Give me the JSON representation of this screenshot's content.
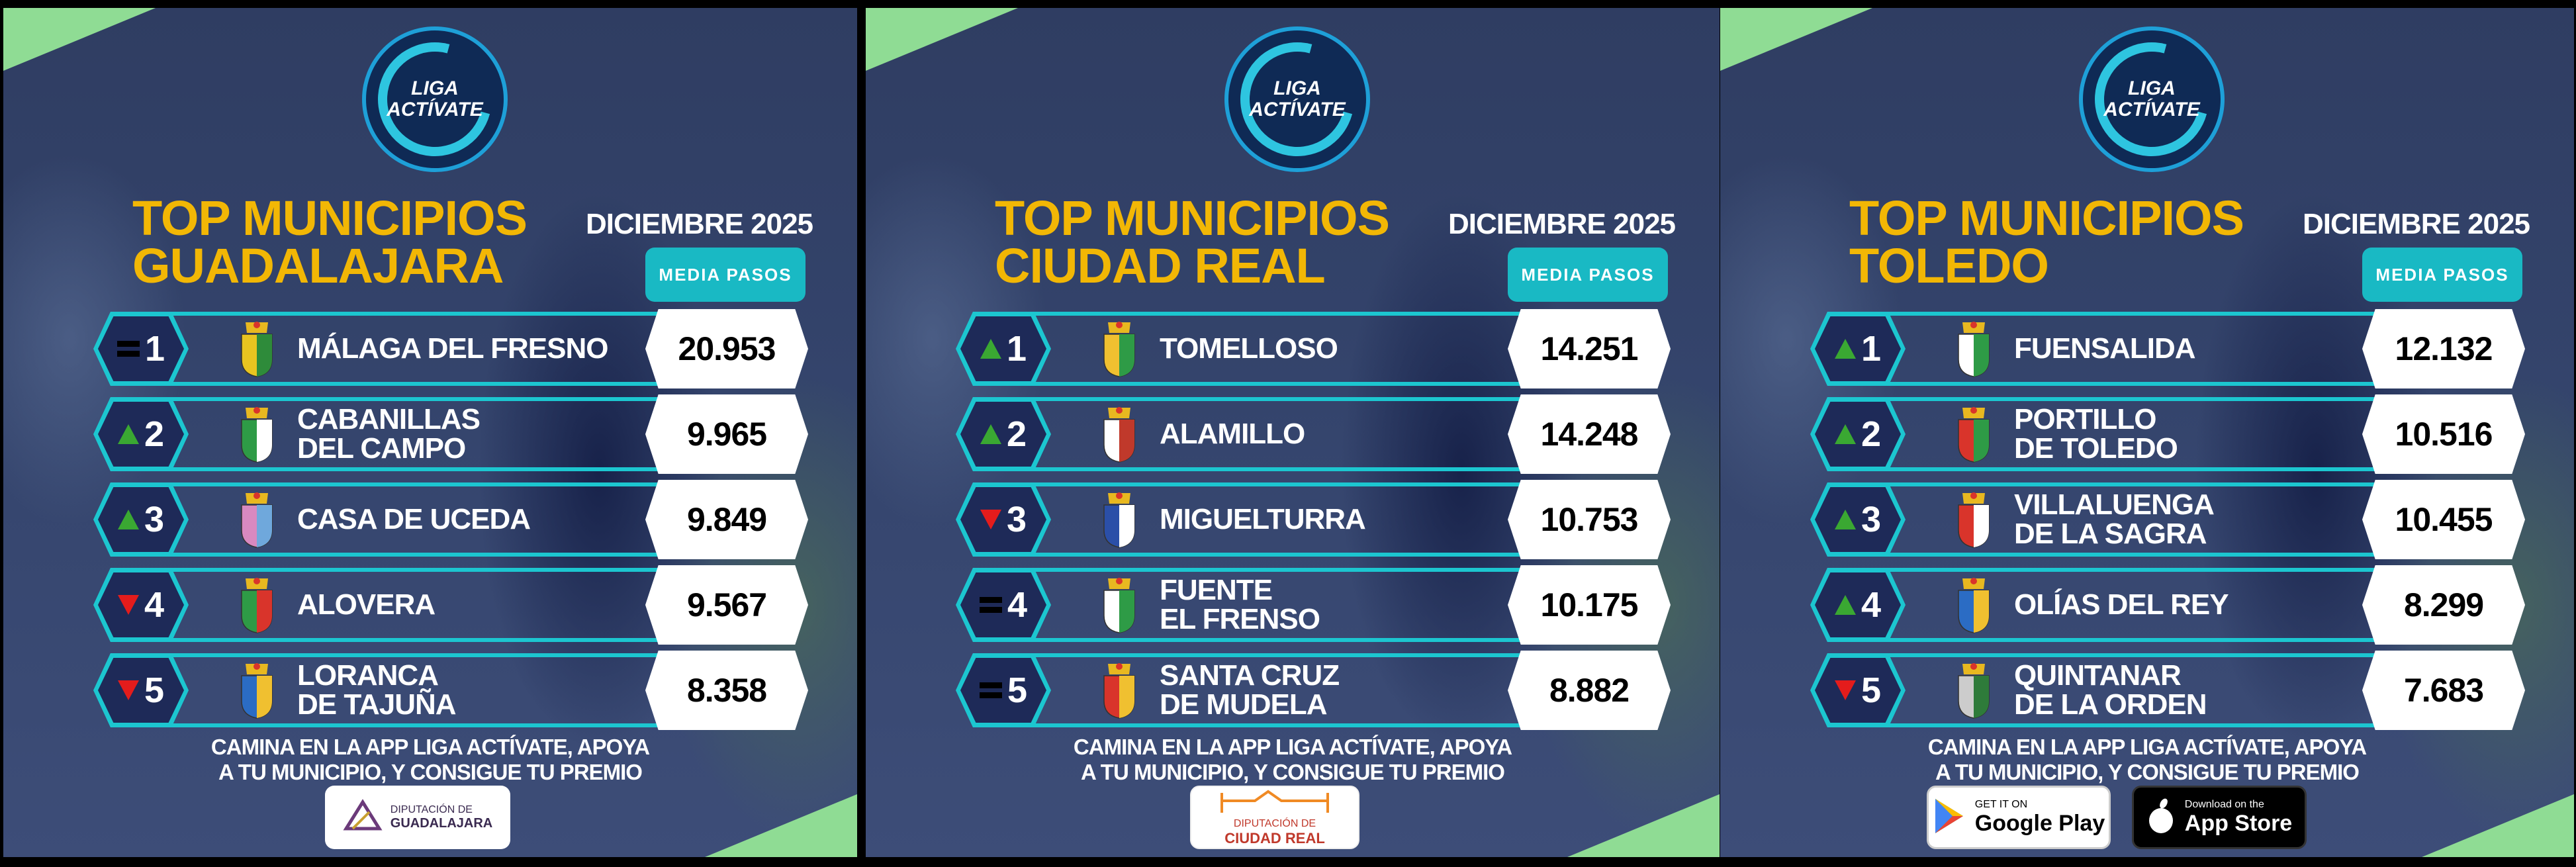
{
  "brand": {
    "logo_line1": "LIGA",
    "logo_line2": "ACTÍVATE"
  },
  "colors": {
    "title": "#f2b705",
    "teal": "#1cc6d0",
    "corner": "#8fdc94",
    "up": "#3aa832",
    "down": "#e41c1c"
  },
  "panels": [
    {
      "title_line1": "TOP MUNICIPIOS",
      "title_line2": "GUADALAJARA",
      "month": "DICIEMBRE 2025",
      "column_label": "MEDIA PASOS",
      "rows": [
        {
          "rank": "1",
          "trend": "equal",
          "name1": "MÁLAGA DEL FRESNO",
          "name2": "",
          "value": "20.953",
          "crest_colors": [
            "#e8c420",
            "#2e8b3a"
          ]
        },
        {
          "rank": "2",
          "trend": "up",
          "name1": "CABANILLAS",
          "name2": "DEL CAMPO",
          "value": "9.965",
          "crest_colors": [
            "#2e9b46",
            "#ffffff"
          ]
        },
        {
          "rank": "3",
          "trend": "up",
          "name1": "CASA DE UCEDA",
          "name2": "",
          "value": "9.849",
          "crest_colors": [
            "#d889c0",
            "#6fa8dc"
          ]
        },
        {
          "rank": "4",
          "trend": "down",
          "name1": "ALOVERA",
          "name2": "",
          "value": "9.567",
          "crest_colors": [
            "#2e9b46",
            "#d9342b"
          ]
        },
        {
          "rank": "5",
          "trend": "down",
          "name1": "LORANCA",
          "name2": "DE TAJUÑA",
          "value": "8.358",
          "crest_colors": [
            "#2b6cc4",
            "#f0c030"
          ]
        }
      ],
      "footer_line1": "CAMINA EN LA APP LIGA ACTÍVATE, APOYA",
      "footer_line2": "A TU MUNICIPIO, Y CONSIGUE TU PREMIO",
      "sponsor": {
        "line1": "DIPUTACIÓN DE",
        "line2": "GUADALAJARA"
      }
    },
    {
      "title_line1": "TOP MUNICIPIOS",
      "title_line2": "CIUDAD REAL",
      "month": "DICIEMBRE 2025",
      "column_label": "MEDIA PASOS",
      "rows": [
        {
          "rank": "1",
          "trend": "up",
          "name1": "TOMELLOSO",
          "name2": "",
          "value": "14.251",
          "crest_colors": [
            "#f0c030",
            "#2e9b46"
          ]
        },
        {
          "rank": "2",
          "trend": "up",
          "name1": "ALAMILLO",
          "name2": "",
          "value": "14.248",
          "crest_colors": [
            "#ffffff",
            "#c0392b"
          ]
        },
        {
          "rank": "3",
          "trend": "down",
          "name1": "MIGUELTURRA",
          "name2": "",
          "value": "10.753",
          "crest_colors": [
            "#2b4fa8",
            "#ffffff"
          ]
        },
        {
          "rank": "4",
          "trend": "equal",
          "name1": "FUENTE",
          "name2": "EL FRENSO",
          "value": "10.175",
          "crest_colors": [
            "#ffffff",
            "#2e9b46"
          ]
        },
        {
          "rank": "5",
          "trend": "equal",
          "name1": "SANTA CRUZ",
          "name2": "DE MUDELA",
          "value": "8.882",
          "crest_colors": [
            "#d9342b",
            "#f0c030"
          ]
        }
      ],
      "footer_line1": "CAMINA EN LA APP LIGA ACTÍVATE, APOYA",
      "footer_line2": "A TU MUNICIPIO, Y CONSIGUE TU PREMIO",
      "sponsor": {
        "line1": "DIPUTACIÓN DE",
        "line2": "CIUDAD REAL"
      }
    },
    {
      "title_line1": "TOP MUNICIPIOS",
      "title_line2": "TOLEDO",
      "month": "DICIEMBRE 2025",
      "column_label": "MEDIA PASOS",
      "rows": [
        {
          "rank": "1",
          "trend": "up",
          "name1": "FUENSALIDA",
          "name2": "",
          "value": "12.132",
          "crest_colors": [
            "#ffffff",
            "#2e9b46"
          ]
        },
        {
          "rank": "2",
          "trend": "up",
          "name1": "PORTILLO",
          "name2": "DE TOLEDO",
          "value": "10.516",
          "crest_colors": [
            "#d9342b",
            "#2e9b46"
          ]
        },
        {
          "rank": "3",
          "trend": "up",
          "name1": "VILLALUENGA",
          "name2": "DE LA SAGRA",
          "value": "10.455",
          "crest_colors": [
            "#d9342b",
            "#ffffff"
          ]
        },
        {
          "rank": "4",
          "trend": "up",
          "name1": "OLÍAS DEL REY",
          "name2": "",
          "value": "8.299",
          "crest_colors": [
            "#2b6cc4",
            "#f0c030"
          ]
        },
        {
          "rank": "5",
          "trend": "down",
          "name1": "QUINTANAR",
          "name2": "DE LA ORDEN",
          "value": "7.683",
          "crest_colors": [
            "#cccccc",
            "#2e7b3a"
          ]
        }
      ],
      "footer_line1": "CAMINA EN LA APP LIGA ACTÍVATE, APOYA",
      "footer_line2": "A TU MUNICIPIO, Y CONSIGUE TU PREMIO",
      "stores": {
        "google_small": "GET IT ON",
        "google_big": "Google Play",
        "apple_small": "Download on the",
        "apple_big": "App Store"
      }
    }
  ]
}
